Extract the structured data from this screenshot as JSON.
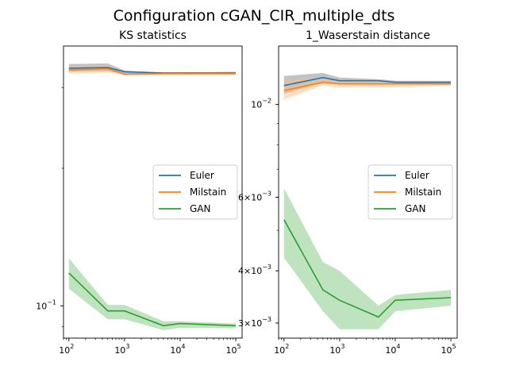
{
  "figure": {
    "suptitle": "Configuration cGAN_CIR_multiple_dts"
  },
  "colors": {
    "Euler": "#1f77b4",
    "Milstain": "#ff7f0e",
    "GAN": "#2ca02c",
    "GAN_band": "#2ca02c",
    "Euler_band": "#888888",
    "Milstain_band": "#ffbb88"
  },
  "chart_data": [
    {
      "type": "line",
      "title": "KS statistics",
      "xscale": "log",
      "yscale": "log",
      "xlim": [
        80,
        130000
      ],
      "ylim": [
        0.085,
        0.37
      ],
      "xticks": [
        {
          "value": 100,
          "base": "10",
          "exp": "2"
        },
        {
          "value": 1000,
          "base": "10",
          "exp": "3"
        },
        {
          "value": 10000,
          "base": "10",
          "exp": "4"
        },
        {
          "value": 100000,
          "base": "10",
          "exp": "5"
        }
      ],
      "yticks": [
        {
          "value": 0.1,
          "label": "10",
          "exp": "−1"
        }
      ],
      "legend": {
        "position": "center-right",
        "entries": [
          "Euler",
          "Milstain",
          "GAN"
        ]
      },
      "x": [
        100,
        500,
        1000,
        5000,
        10000,
        100000
      ],
      "series": [
        {
          "name": "Euler",
          "values": [
            0.331,
            0.332,
            0.325,
            0.323,
            0.323,
            0.323
          ],
          "lower": [
            0.325,
            0.326,
            0.322,
            0.321,
            0.321,
            0.321
          ],
          "upper": [
            0.338,
            0.339,
            0.327,
            0.324,
            0.324,
            0.325
          ]
        },
        {
          "name": "Milstain",
          "values": [
            0.328,
            0.33,
            0.321,
            0.322,
            0.322,
            0.322
          ],
          "lower": [
            0.322,
            0.324,
            0.319,
            0.32,
            0.32,
            0.32
          ],
          "upper": [
            0.334,
            0.336,
            0.323,
            0.324,
            0.324,
            0.324
          ]
        },
        {
          "name": "GAN",
          "values": [
            0.118,
            0.0975,
            0.0975,
            0.0905,
            0.0915,
            0.0905
          ],
          "lower": [
            0.109,
            0.0935,
            0.0935,
            0.0885,
            0.0895,
            0.0895
          ],
          "upper": [
            0.127,
            0.1005,
            0.1005,
            0.0925,
            0.0925,
            0.0915
          ]
        }
      ]
    },
    {
      "type": "line",
      "title": "1_Waserstain distance",
      "xscale": "log",
      "yscale": "log",
      "xlim": [
        80,
        130000
      ],
      "ylim": [
        0.00276,
        0.0138
      ],
      "xticks": [
        {
          "value": 100,
          "base": "10",
          "exp": "2"
        },
        {
          "value": 1000,
          "base": "10",
          "exp": "3"
        },
        {
          "value": 10000,
          "base": "10",
          "exp": "4"
        },
        {
          "value": 100000,
          "base": "10",
          "exp": "5"
        }
      ],
      "yticks": [
        {
          "value": 0.01,
          "label": "10",
          "exp": "−2"
        },
        {
          "value": 0.006,
          "label": "6×10",
          "exp": "−3"
        },
        {
          "value": 0.004,
          "label": "4×10",
          "exp": "−3"
        },
        {
          "value": 0.003,
          "label": "3×10",
          "exp": "−3"
        }
      ],
      "legend": {
        "position": "center-right",
        "entries": [
          "Euler",
          "Milstain",
          "GAN"
        ]
      },
      "x": [
        100,
        500,
        1000,
        5000,
        10000,
        100000
      ],
      "series": [
        {
          "name": "Euler",
          "values": [
            0.0111,
            0.0116,
            0.0114,
            0.0114,
            0.0113,
            0.0113
          ],
          "lower": [
            0.0106,
            0.0113,
            0.0112,
            0.0112,
            0.0112,
            0.0112
          ],
          "upper": [
            0.0117,
            0.0119,
            0.0116,
            0.0115,
            0.0114,
            0.0114
          ]
        },
        {
          "name": "Milstain",
          "values": [
            0.0108,
            0.0113,
            0.0112,
            0.0112,
            0.0112,
            0.0112
          ],
          "lower": [
            0.0103,
            0.0111,
            0.011,
            0.011,
            0.011,
            0.0111
          ],
          "upper": [
            0.0114,
            0.0116,
            0.0114,
            0.0114,
            0.0113,
            0.0113
          ]
        },
        {
          "name": "GAN",
          "values": [
            0.0053,
            0.0036,
            0.0034,
            0.0031,
            0.0034,
            0.00345
          ],
          "lower": [
            0.0043,
            0.0032,
            0.0029,
            0.0029,
            0.0032,
            0.0033
          ],
          "upper": [
            0.0063,
            0.0042,
            0.004,
            0.0033,
            0.0035,
            0.0036
          ]
        }
      ]
    }
  ]
}
